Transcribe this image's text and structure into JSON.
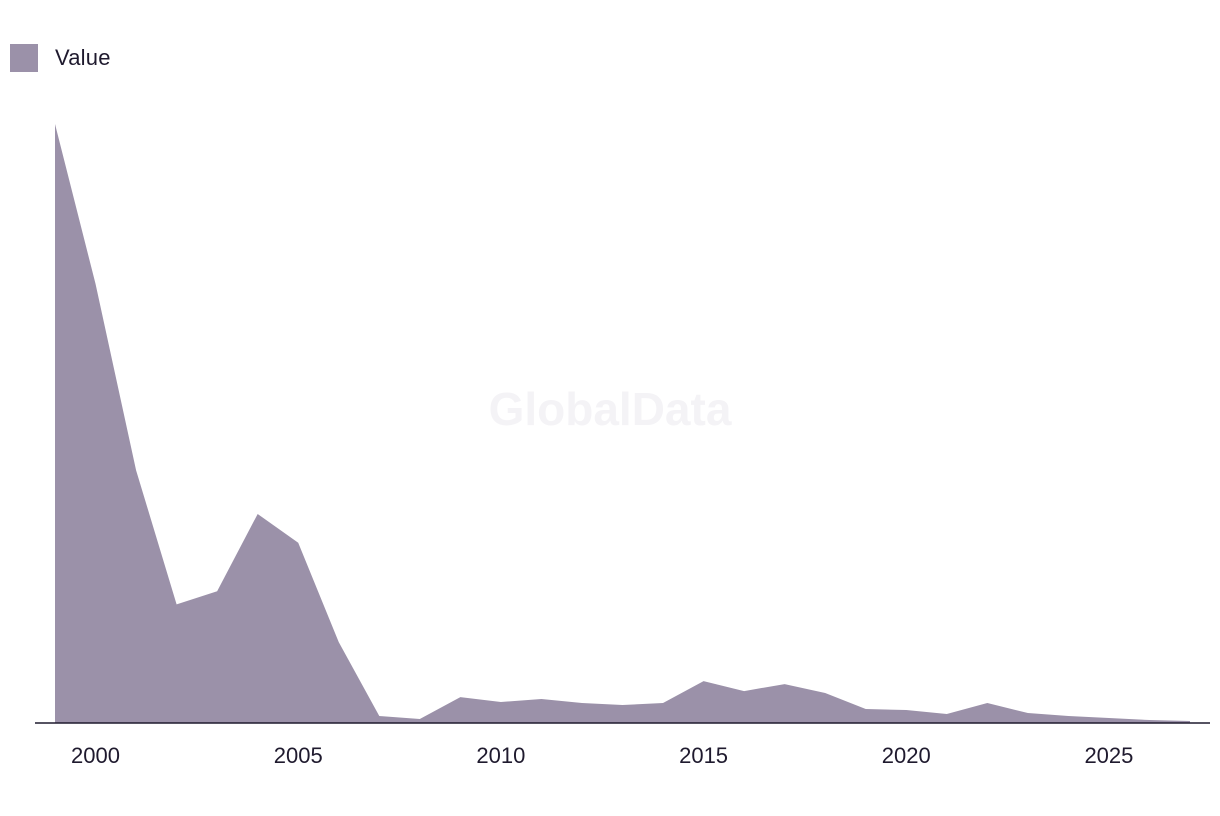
{
  "watermark": "GlobalData",
  "colors": {
    "area": "#9b91a9",
    "axis": "#1f1a2e",
    "text": "#1f1a2e"
  },
  "chart_data": {
    "type": "area",
    "legend": {
      "position": "top-left",
      "entries": [
        "Value"
      ]
    },
    "series": [
      {
        "name": "Value",
        "x": [
          1999,
          2000,
          2001,
          2002,
          2003,
          2004,
          2005,
          2006,
          2007,
          2008,
          2009,
          2010,
          2011,
          2012,
          2013,
          2014,
          2015,
          2016,
          2017,
          2018,
          2019,
          2020,
          2021,
          2022,
          2023,
          2024,
          2025,
          2026,
          2027
        ],
        "values": [
          100,
          73.3,
          42.2,
          19.8,
          22.0,
          34.9,
          30.1,
          13.5,
          1.17,
          0.67,
          4.33,
          3.5,
          4.0,
          3.33,
          3.0,
          3.33,
          7.0,
          5.33,
          6.5,
          5.0,
          2.33,
          2.17,
          1.5,
          3.33,
          1.67,
          1.17,
          0.83,
          0.5,
          0.33
        ]
      }
    ],
    "x_ticks": [
      "2000",
      "2005",
      "2010",
      "2015",
      "2020",
      "2025"
    ],
    "xlim": [
      1999,
      2027
    ],
    "ylim": [
      0,
      100
    ],
    "xlabel": "",
    "ylabel": "",
    "grid": false
  }
}
